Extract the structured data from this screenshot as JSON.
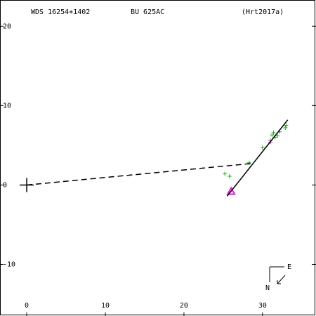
{
  "chart_data": {
    "type": "scatter",
    "title": "WDS 16254+1402",
    "subtitle": "BU  625AC",
    "reference": "(Hrt2017a)",
    "xlim": [
      -3.4,
      36.8
    ],
    "ylim": [
      -16.5,
      23.3
    ],
    "xticks": [
      0,
      10,
      20,
      30
    ],
    "yticks": [
      20,
      10,
      0,
      -10
    ],
    "compass": {
      "north": "N",
      "east": "E"
    },
    "series": [
      {
        "color": "#22aa22",
        "marker": "plus",
        "x": [
          25.2,
          25.8,
          28.3,
          30.0,
          31.0,
          31.2,
          31.4,
          31.6,
          31.9,
          32.2,
          32.9,
          33.0
        ],
        "values": [
          1.4,
          1.1,
          2.8,
          4.7,
          5.6,
          6.3,
          6.6,
          6.0,
          6.2,
          6.7,
          7.2,
          7.5
        ]
      },
      {
        "color": "#dd22dd",
        "marker": "plus",
        "x": [
          31.0
        ],
        "values": [
          5.4
        ]
      },
      {
        "color": "#dd22dd",
        "marker": "triangle",
        "x": [
          26.0
        ],
        "values": [
          -0.8
        ]
      },
      {
        "color": "#000000",
        "marker": "bigplus",
        "x": [
          0
        ],
        "values": [
          0
        ]
      },
      {
        "color": "#000000",
        "marker": "line",
        "dash": true,
        "x": [
          0,
          28.5
        ],
        "values": [
          0,
          2.7
        ]
      },
      {
        "color": "#000000",
        "marker": "line",
        "dash": false,
        "x": [
          25.5,
          33.2
        ],
        "values": [
          -1.4,
          8.2
        ]
      }
    ]
  }
}
